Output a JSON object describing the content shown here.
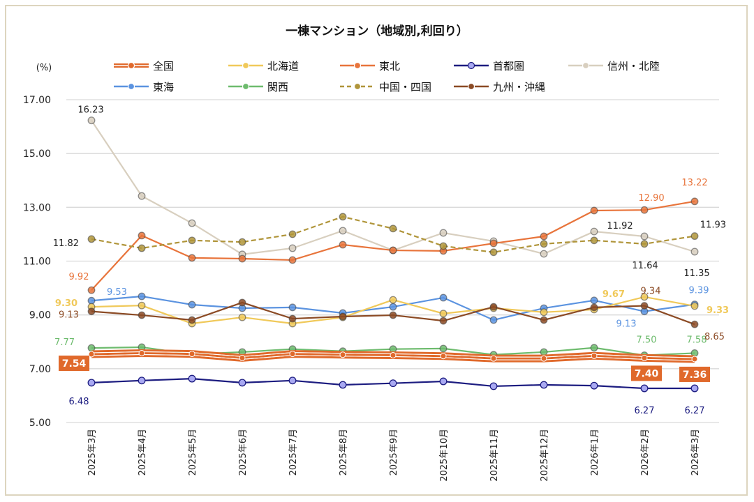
{
  "chart_data": {
    "type": "line",
    "title": "一棟マンション（地域別,利回り）",
    "ylabel": "(%)",
    "ylim": [
      5,
      17
    ],
    "yticks": [
      "5.00",
      "7.00",
      "9.00",
      "11.00",
      "13.00",
      "15.00",
      "17.00"
    ],
    "grid": true,
    "legend_position": "top",
    "categories": [
      "2025年3月",
      "2025年4月",
      "2025年5月",
      "2025年6月",
      "2025年7月",
      "2025年8月",
      "2025年9月",
      "2025年10月",
      "2025年11月",
      "2025年12月",
      "2026年1月",
      "2026年2月",
      "2026年3月"
    ],
    "series": [
      {
        "name": "全国",
        "color": "#e0692b",
        "style": "double",
        "values": [
          7.54,
          7.58,
          7.55,
          7.4,
          7.55,
          7.52,
          7.5,
          7.47,
          7.38,
          7.38,
          7.48,
          7.4,
          7.36
        ],
        "labels": {
          "0": "7.54",
          "11": "7.40",
          "12": "7.36"
        }
      },
      {
        "name": "北海道",
        "color": "#f0c95a",
        "style": "solid",
        "values": [
          9.3,
          9.35,
          8.68,
          8.91,
          8.68,
          8.91,
          9.56,
          9.05,
          9.25,
          9.1,
          9.2,
          9.67,
          9.33
        ],
        "labels": {
          "0": "9.30",
          "11": "9.67",
          "12": "9.33"
        }
      },
      {
        "name": "東北",
        "color": "#e8743b",
        "style": "solid",
        "values": [
          9.92,
          11.95,
          11.12,
          11.09,
          11.04,
          11.61,
          11.4,
          11.38,
          11.66,
          11.92,
          12.88,
          12.9,
          13.22
        ],
        "labels": {
          "0": "9.92",
          "11": "12.90",
          "12": "13.22"
        }
      },
      {
        "name": "首都圏",
        "color": "#1c1c80",
        "fill": "#a9a9f2",
        "style": "solid",
        "values": [
          6.48,
          6.56,
          6.63,
          6.48,
          6.56,
          6.4,
          6.46,
          6.53,
          6.35,
          6.4,
          6.37,
          6.27,
          6.27
        ],
        "labels": {
          "0": "6.48",
          "11": "6.27",
          "12": "6.27"
        }
      },
      {
        "name": "信州・北陸",
        "color": "#d8cfbf",
        "style": "solid",
        "values": [
          16.23,
          13.42,
          12.41,
          11.25,
          11.48,
          12.13,
          11.4,
          12.05,
          11.74,
          11.27,
          12.1,
          11.92,
          11.35
        ],
        "labels": {
          "0": "16.23",
          "11": "11.92",
          "12": "11.35"
        }
      },
      {
        "name": "東海",
        "color": "#5b93e0",
        "style": "solid",
        "values": [
          9.53,
          9.69,
          9.38,
          9.25,
          9.28,
          9.07,
          9.3,
          9.64,
          8.81,
          9.25,
          9.54,
          9.13,
          9.39
        ],
        "labels": {
          "0": "9.53",
          "11": "9.13",
          "12": "9.39"
        }
      },
      {
        "name": "関西",
        "color": "#6dbb6d",
        "style": "solid",
        "values": [
          7.77,
          7.8,
          7.54,
          7.62,
          7.73,
          7.65,
          7.73,
          7.75,
          7.52,
          7.62,
          7.78,
          7.5,
          7.58
        ],
        "labels": {
          "0": "7.77",
          "11": "7.50",
          "12": "7.58"
        }
      },
      {
        "name": "中国・四国",
        "color": "#b0953a",
        "style": "dashed",
        "values": [
          11.82,
          11.48,
          11.77,
          11.71,
          12.0,
          12.65,
          12.21,
          11.56,
          11.33,
          11.64,
          11.77,
          11.64,
          11.93
        ],
        "labels": {
          "0": "11.82",
          "11": "11.64",
          "12": "11.93"
        }
      },
      {
        "name": "九州・沖縄",
        "color": "#8b4a24",
        "style": "solid",
        "values": [
          9.13,
          8.99,
          8.81,
          9.46,
          8.86,
          8.94,
          8.99,
          8.78,
          9.3,
          8.81,
          9.28,
          9.34,
          8.65
        ],
        "labels": {
          "0": "9.13",
          "11": "9.34",
          "12": "8.65"
        }
      }
    ]
  }
}
